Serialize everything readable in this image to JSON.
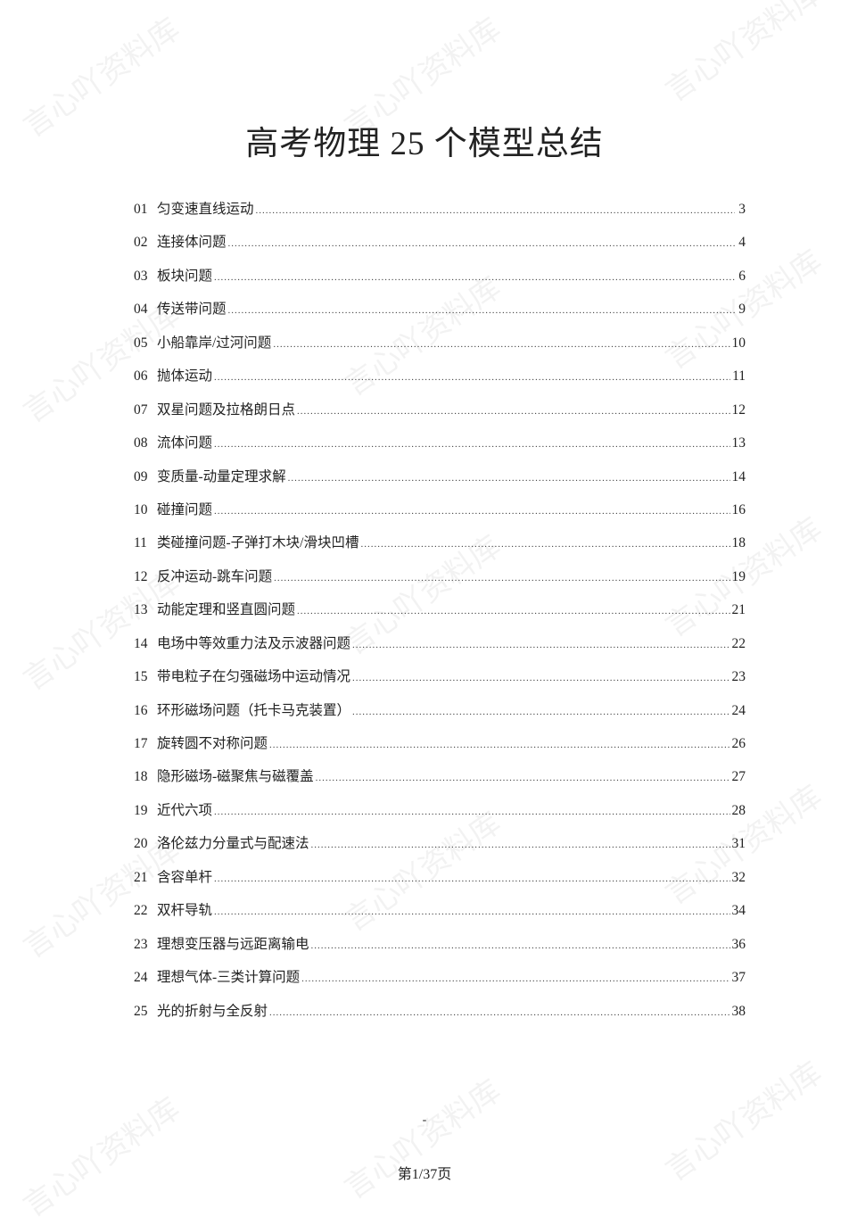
{
  "watermark": "言心吖资料库",
  "title": "高考物理 25 个模型总结",
  "toc": [
    {
      "num": "01",
      "label": "匀变速直线运动",
      "page": "3"
    },
    {
      "num": "02",
      "label": "连接体问题",
      "page": "4"
    },
    {
      "num": "03",
      "label": "板块问题",
      "page": "6"
    },
    {
      "num": "04",
      "label": "传送带问题",
      "page": "9"
    },
    {
      "num": "05",
      "label": "小船靠岸/过河问题",
      "page": "10"
    },
    {
      "num": "06",
      "label": "抛体运动",
      "page": "11"
    },
    {
      "num": "07",
      "label": "双星问题及拉格朗日点",
      "page": "12"
    },
    {
      "num": "08",
      "label": "流体问题",
      "page": "13"
    },
    {
      "num": "09",
      "label": "变质量-动量定理求解",
      "page": "14"
    },
    {
      "num": "10",
      "label": "碰撞问题",
      "page": "16"
    },
    {
      "num": "11",
      "label": "类碰撞问题-子弹打木块/滑块凹槽",
      "page": "18"
    },
    {
      "num": "12",
      "label": "反冲运动-跳车问题",
      "page": "19"
    },
    {
      "num": "13",
      "label": "动能定理和竖直圆问题",
      "page": "21"
    },
    {
      "num": "14",
      "label": "电场中等效重力法及示波器问题",
      "page": "22"
    },
    {
      "num": "15",
      "label": "带电粒子在匀强磁场中运动情况",
      "page": "23"
    },
    {
      "num": "16",
      "label": "环形磁场问题（托卡马克装置）",
      "page": "24"
    },
    {
      "num": "17",
      "label": "旋转圆不对称问题",
      "page": "26"
    },
    {
      "num": "18",
      "label": "隐形磁场-磁聚焦与磁覆盖",
      "page": "27"
    },
    {
      "num": "19",
      "label": "近代六项",
      "page": "28"
    },
    {
      "num": "20",
      "label": "洛伦兹力分量式与配速法",
      "page": "31"
    },
    {
      "num": "21",
      "label": "含容单杆",
      "page": "32"
    },
    {
      "num": "22",
      "label": "双杆导轨",
      "page": "34"
    },
    {
      "num": "23",
      "label": "理想变压器与远距离输电",
      "page": "36"
    },
    {
      "num": "24",
      "label": "理想气体-三类计算问题",
      "page": "37"
    },
    {
      "num": "25",
      "label": "光的折射与全反射",
      "page": "38"
    }
  ],
  "footer": {
    "dash": "-",
    "page_label": "第1/37页"
  }
}
